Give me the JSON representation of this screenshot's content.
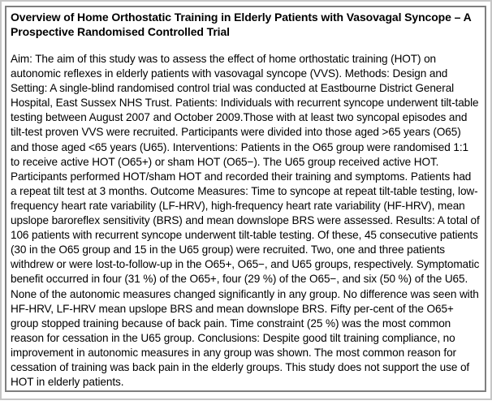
{
  "document": {
    "title": "Overview of Home Orthostatic Training in Elderly Patients with Vasovagal Syncope – A\nProspective Randomised Controlled Trial",
    "abstract": "Aim: The aim of this study was to assess the effect of home orthostatic training (HOT) on autonomic reflexes in elderly patients with vasovagal syncope (VVS). Methods: Design and Setting: A single-blind randomised control trial was conducted at Eastbourne District General Hospital, East Sussex NHS Trust. Patients: Individuals with recurrent syncope underwent tilt-table testing between August 2007 and October 2009.Those with at least two syncopal episodes and tilt-test proven VVS were recruited. Participants were divided into those aged >65 years (O65) and those aged <65 years (U65). Interventions: Patients in the O65 group were randomised 1:1 to receive active HOT (O65+) or sham HOT (O65−). The U65 group received active HOT. Participants performed HOT/sham HOT and recorded their training and symptoms. Patients had a repeat tilt test at 3 months. Outcome Measures: Time to syncope at repeat tilt-table testing, low-frequency heart rate variability (LF-HRV), high-frequency heart rate variability (HF-HRV), mean upslope baroreflex sensitivity (BRS) and mean downslope BRS were assessed. Results: A total of 106 patients with recurrent syncope underwent tilt-table testing. Of these, 45 consecutive patients (30 in the O65 group and 15 in the U65 group) were recruited. Two, one and three patients withdrew or were lost-to-follow-up in the O65+, O65−, and U65 groups, respectively. Symptomatic benefit occurred in four (31 %) of the O65+, four (29 %) of the O65−, and six (50 %) of the U65. None of the autonomic measures changed significantly in any group. No difference was seen with HF-HRV, LF-HRV mean upslope BRS and mean downslope BRS. Fifty per-cent of the O65+ group stopped training because of back pain. Time constraint (25 %) was the most common reason for cessation in the U65 group. Conclusions: Despite good tilt training compliance, no improvement in autonomic measures in any group was shown. The most common reason for cessation of training was back pain in the elderly groups. This study does not support the use of HOT in elderly patients."
  },
  "colors": {
    "text": "#000000",
    "inner_border": "#7f7f7f",
    "outer_border": "#c6c6c6",
    "background": "#ffffff"
  }
}
